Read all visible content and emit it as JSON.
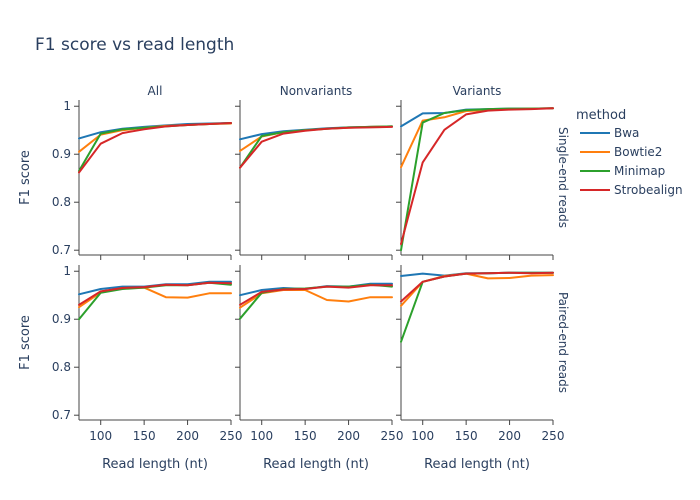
{
  "chart_data": {
    "type": "line",
    "title": "F1 score vs read length",
    "xlabel": "Read length (nt)",
    "ylabel": "F1 score",
    "x": [
      75,
      100,
      125,
      150,
      175,
      200,
      225,
      250
    ],
    "xticks": [
      100,
      150,
      200,
      250
    ],
    "xtick_labels": [
      "100",
      "150",
      "200",
      "250"
    ],
    "xlim": [
      75,
      250
    ],
    "yticks": [
      0.7,
      0.8,
      0.9,
      1
    ],
    "ytick_labels": [
      "0.7",
      "0.8",
      "0.9",
      "1"
    ],
    "ylim": [
      0.69,
      1.013
    ],
    "columns": [
      "All",
      "Nonvariants",
      "Variants"
    ],
    "rows": [
      "Single-end reads",
      "Paired-end reads"
    ],
    "legend": {
      "title": "method",
      "placement": "right",
      "entries": [
        {
          "name": "Bwa",
          "color": "#1f77b4"
        },
        {
          "name": "Bowtie2",
          "color": "#ff7f0e"
        },
        {
          "name": "Minimap",
          "color": "#2ca02c"
        },
        {
          "name": "Strobealign",
          "color": "#d62728"
        }
      ]
    },
    "panels": [
      {
        "row": 0,
        "col": 0,
        "series": [
          {
            "method": "Bwa",
            "values": [
              0.933,
              0.946,
              0.953,
              0.957,
              0.96,
              0.963,
              0.964,
              0.965
            ]
          },
          {
            "method": "Bowtie2",
            "values": [
              0.905,
              0.941,
              0.95,
              0.955,
              0.959,
              0.961,
              0.963,
              0.964
            ]
          },
          {
            "method": "Minimap",
            "values": [
              0.865,
              0.943,
              0.952,
              0.955,
              0.958,
              0.961,
              0.963,
              0.965
            ]
          },
          {
            "method": "Strobealign",
            "values": [
              0.862,
              0.922,
              0.944,
              0.952,
              0.958,
              0.961,
              0.963,
              0.965
            ]
          }
        ]
      },
      {
        "row": 0,
        "col": 1,
        "series": [
          {
            "method": "Bwa",
            "values": [
              0.931,
              0.942,
              0.948,
              0.951,
              0.954,
              0.956,
              0.957,
              0.958
            ]
          },
          {
            "method": "Bowtie2",
            "values": [
              0.907,
              0.937,
              0.946,
              0.95,
              0.953,
              0.955,
              0.957,
              0.958
            ]
          },
          {
            "method": "Minimap",
            "values": [
              0.872,
              0.938,
              0.946,
              0.95,
              0.953,
              0.956,
              0.957,
              0.958
            ]
          },
          {
            "method": "Strobealign",
            "values": [
              0.872,
              0.926,
              0.943,
              0.949,
              0.953,
              0.955,
              0.956,
              0.957
            ]
          }
        ]
      },
      {
        "row": 0,
        "col": 2,
        "series": [
          {
            "method": "Bwa",
            "values": [
              0.958,
              0.985,
              0.986,
              0.993,
              0.994,
              0.995,
              0.995,
              0.996
            ]
          },
          {
            "method": "Bowtie2",
            "values": [
              0.873,
              0.97,
              0.977,
              0.99,
              0.992,
              0.994,
              0.995,
              0.996
            ]
          },
          {
            "method": "Minimap",
            "values": [
              0.7,
              0.966,
              0.986,
              0.992,
              0.994,
              0.995,
              0.995,
              0.996
            ]
          },
          {
            "method": "Strobealign",
            "values": [
              0.713,
              0.883,
              0.951,
              0.983,
              0.991,
              0.993,
              0.994,
              0.996
            ]
          }
        ]
      },
      {
        "row": 1,
        "col": 0,
        "series": [
          {
            "method": "Bwa",
            "values": [
              0.952,
              0.963,
              0.968,
              0.968,
              0.973,
              0.973,
              0.978,
              0.978
            ]
          },
          {
            "method": "Bowtie2",
            "values": [
              0.925,
              0.956,
              0.965,
              0.966,
              0.946,
              0.945,
              0.954,
              0.954
            ]
          },
          {
            "method": "Minimap",
            "values": [
              0.9,
              0.955,
              0.963,
              0.966,
              0.971,
              0.971,
              0.976,
              0.972
            ]
          },
          {
            "method": "Strobealign",
            "values": [
              0.93,
              0.958,
              0.965,
              0.967,
              0.972,
              0.971,
              0.976,
              0.975
            ]
          }
        ]
      },
      {
        "row": 1,
        "col": 1,
        "series": [
          {
            "method": "Bwa",
            "values": [
              0.95,
              0.961,
              0.965,
              0.963,
              0.969,
              0.968,
              0.974,
              0.974
            ]
          },
          {
            "method": "Bowtie2",
            "values": [
              0.924,
              0.954,
              0.961,
              0.961,
              0.94,
              0.937,
              0.946,
              0.946
            ]
          },
          {
            "method": "Minimap",
            "values": [
              0.901,
              0.955,
              0.963,
              0.964,
              0.968,
              0.968,
              0.972,
              0.968
            ]
          },
          {
            "method": "Strobealign",
            "values": [
              0.93,
              0.957,
              0.962,
              0.963,
              0.968,
              0.966,
              0.971,
              0.971
            ]
          }
        ]
      },
      {
        "row": 1,
        "col": 2,
        "series": [
          {
            "method": "Bwa",
            "values": [
              0.99,
              0.995,
              0.991,
              0.996,
              0.996,
              0.997,
              0.997,
              0.997
            ]
          },
          {
            "method": "Bowtie2",
            "values": [
              0.928,
              0.978,
              0.99,
              0.995,
              0.985,
              0.986,
              0.991,
              0.992
            ]
          },
          {
            "method": "Minimap",
            "values": [
              0.853,
              0.978,
              0.989,
              0.995,
              0.996,
              0.997,
              0.997,
              0.997
            ]
          },
          {
            "method": "Strobealign",
            "values": [
              0.937,
              0.978,
              0.989,
              0.995,
              0.996,
              0.997,
              0.996,
              0.997
            ]
          }
        ]
      }
    ]
  }
}
